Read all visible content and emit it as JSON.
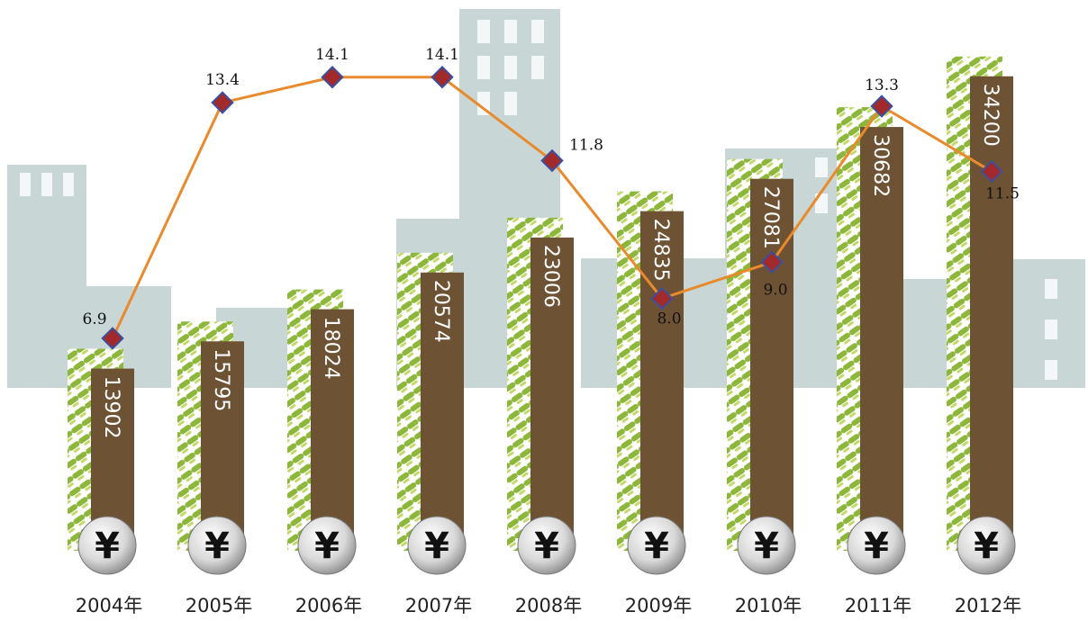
{
  "chart_data": {
    "type": "bar_line",
    "categories": [
      "2004年",
      "2005年",
      "2006年",
      "2007年",
      "2008年",
      "2009年",
      "2010年",
      "2011年",
      "2012年"
    ],
    "series": [
      {
        "type": "bar",
        "color": "#6e5234",
        "values": [
          13902,
          15795,
          18024,
          20574,
          23006,
          24835,
          27081,
          30682,
          34200
        ]
      },
      {
        "type": "line",
        "color": "#e98a2c",
        "marker_color": "#a32a2a",
        "values": [
          6.9,
          13.4,
          14.1,
          14.1,
          11.8,
          8.0,
          9.0,
          13.3,
          11.5
        ],
        "value_labels": [
          "6.9",
          "13.4",
          "14.1",
          "14.1",
          "11.8",
          "8.0",
          "9.0",
          "13.3",
          "11.5"
        ]
      }
    ],
    "marker_symbol": "¥"
  }
}
